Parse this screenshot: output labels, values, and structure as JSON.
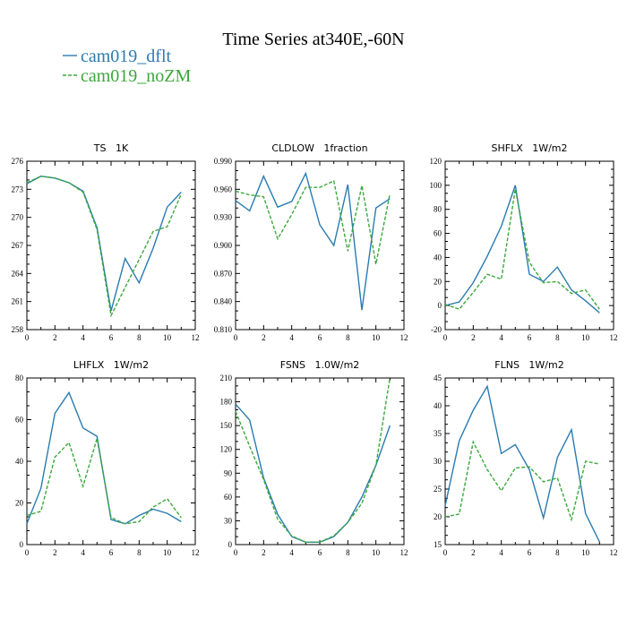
{
  "figure_title": "Time Series at340E,-60N",
  "legend": [
    {
      "label": "cam019_dflt",
      "color": "#2a7bb0"
    },
    {
      "label": "cam019_noZM",
      "color": "#3aa83a"
    }
  ],
  "chart_data": [
    {
      "type": "line",
      "title": "TS   1K",
      "x": [
        0,
        1,
        2,
        3,
        4,
        5,
        6,
        7,
        8,
        9,
        10,
        11
      ],
      "xlim": [
        0,
        12
      ],
      "xticks": [
        "0",
        "2",
        "4",
        "6",
        "8",
        "10",
        "12"
      ],
      "ylim": [
        258,
        276
      ],
      "yticks": [
        "258",
        "261",
        "264",
        "267",
        "270",
        "273",
        "276"
      ],
      "series": [
        {
          "name": "cam019_dflt",
          "values": [
            273.6,
            274.4,
            274.2,
            273.7,
            272.8,
            268.9,
            260.0,
            265.6,
            263.0,
            266.7,
            271.1,
            272.7
          ]
        },
        {
          "name": "cam019_noZM",
          "values": [
            273.7,
            274.4,
            274.2,
            273.7,
            272.7,
            268.7,
            259.5,
            262.5,
            265.5,
            268.5,
            269.0,
            272.5
          ]
        }
      ]
    },
    {
      "type": "line",
      "title": "CLDLOW   1fraction",
      "x": [
        0,
        1,
        2,
        3,
        4,
        5,
        6,
        7,
        8,
        9,
        10,
        11
      ],
      "xlim": [
        0,
        12
      ],
      "xticks": [
        "0",
        "2",
        "4",
        "6",
        "8",
        "10",
        "12"
      ],
      "ylim": [
        0.81,
        0.99
      ],
      "yticks": [
        "0.810",
        "0.840",
        "0.870",
        "0.900",
        "0.930",
        "0.960",
        "0.990"
      ],
      "series": [
        {
          "name": "cam019_dflt",
          "values": [
            0.948,
            0.937,
            0.974,
            0.941,
            0.947,
            0.977,
            0.922,
            0.9,
            0.965,
            0.831,
            0.94,
            0.95
          ]
        },
        {
          "name": "cam019_noZM",
          "values": [
            0.958,
            0.954,
            0.952,
            0.907,
            0.933,
            0.962,
            0.962,
            0.969,
            0.894,
            0.964,
            0.88,
            0.955
          ]
        }
      ]
    },
    {
      "type": "line",
      "title": "SHFLX   1W/m2",
      "x": [
        0,
        1,
        2,
        3,
        4,
        5,
        6,
        7,
        8,
        9,
        10,
        11
      ],
      "xlim": [
        0,
        12
      ],
      "xticks": [
        "0",
        "2",
        "4",
        "6",
        "8",
        "10",
        "12"
      ],
      "ylim": [
        -20,
        120
      ],
      "yticks": [
        "-20",
        "0",
        "20",
        "40",
        "60",
        "80",
        "100",
        "120"
      ],
      "series": [
        {
          "name": "cam019_dflt",
          "values": [
            0,
            3,
            19,
            41,
            66,
            100,
            26,
            20,
            32,
            13,
            4,
            -6
          ]
        },
        {
          "name": "cam019_noZM",
          "values": [
            1,
            -3,
            11,
            26,
            22,
            97,
            36,
            19,
            20,
            10,
            13,
            -3
          ]
        }
      ]
    },
    {
      "type": "line",
      "title": "LHFLX   1W/m2",
      "x": [
        0,
        1,
        2,
        3,
        4,
        5,
        6,
        7,
        8,
        9,
        10,
        11
      ],
      "xlim": [
        0,
        12
      ],
      "xticks": [
        "0",
        "2",
        "4",
        "6",
        "8",
        "10",
        "12"
      ],
      "ylim": [
        0,
        80
      ],
      "yticks": [
        "0",
        "20",
        "40",
        "60",
        "80"
      ],
      "series": [
        {
          "name": "cam019_dflt",
          "values": [
            10,
            27,
            63,
            73,
            56,
            52,
            12,
            10,
            14,
            17,
            15,
            11
          ]
        },
        {
          "name": "cam019_noZM",
          "values": [
            14,
            16,
            42,
            49,
            28,
            51,
            13,
            10,
            11,
            18,
            22,
            13
          ]
        }
      ]
    },
    {
      "type": "line",
      "title": "FSNS   1.0W/m2",
      "x": [
        0,
        1,
        2,
        3,
        4,
        5,
        6,
        7,
        8,
        9,
        10,
        11
      ],
      "xlim": [
        0,
        12
      ],
      "xticks": [
        "0",
        "2",
        "4",
        "6",
        "8",
        "10",
        "12"
      ],
      "ylim": [
        0,
        210
      ],
      "yticks": [
        "0",
        "30",
        "60",
        "90",
        "120",
        "150",
        "180",
        "210"
      ],
      "series": [
        {
          "name": "cam019_dflt",
          "values": [
            177,
            157,
            84,
            38,
            10,
            3,
            3,
            10,
            28,
            60,
            100,
            150
          ]
        },
        {
          "name": "cam019_noZM",
          "values": [
            168,
            124,
            82,
            32,
            11,
            3,
            3,
            11,
            28,
            52,
            100,
            210
          ]
        }
      ]
    },
    {
      "type": "line",
      "title": "FLNS   1W/m2",
      "x": [
        0,
        1,
        2,
        3,
        4,
        5,
        6,
        7,
        8,
        9,
        10,
        11
      ],
      "xlim": [
        0,
        12
      ],
      "xticks": [
        "0",
        "2",
        "4",
        "6",
        "8",
        "10",
        "12"
      ],
      "ylim": [
        15,
        45
      ],
      "yticks": [
        "15",
        "20",
        "25",
        "30",
        "35",
        "40",
        "45"
      ],
      "series": [
        {
          "name": "cam019_dflt",
          "values": [
            22.0,
            33.7,
            39.2,
            43.5,
            31.4,
            33.0,
            28.5,
            19.8,
            30.7,
            35.7,
            20.6,
            15.5
          ]
        },
        {
          "name": "cam019_noZM",
          "values": [
            20.0,
            20.5,
            33.5,
            28.5,
            24.7,
            28.8,
            29.0,
            26.3,
            27.0,
            19.5,
            30.0,
            29.5
          ]
        }
      ]
    }
  ]
}
